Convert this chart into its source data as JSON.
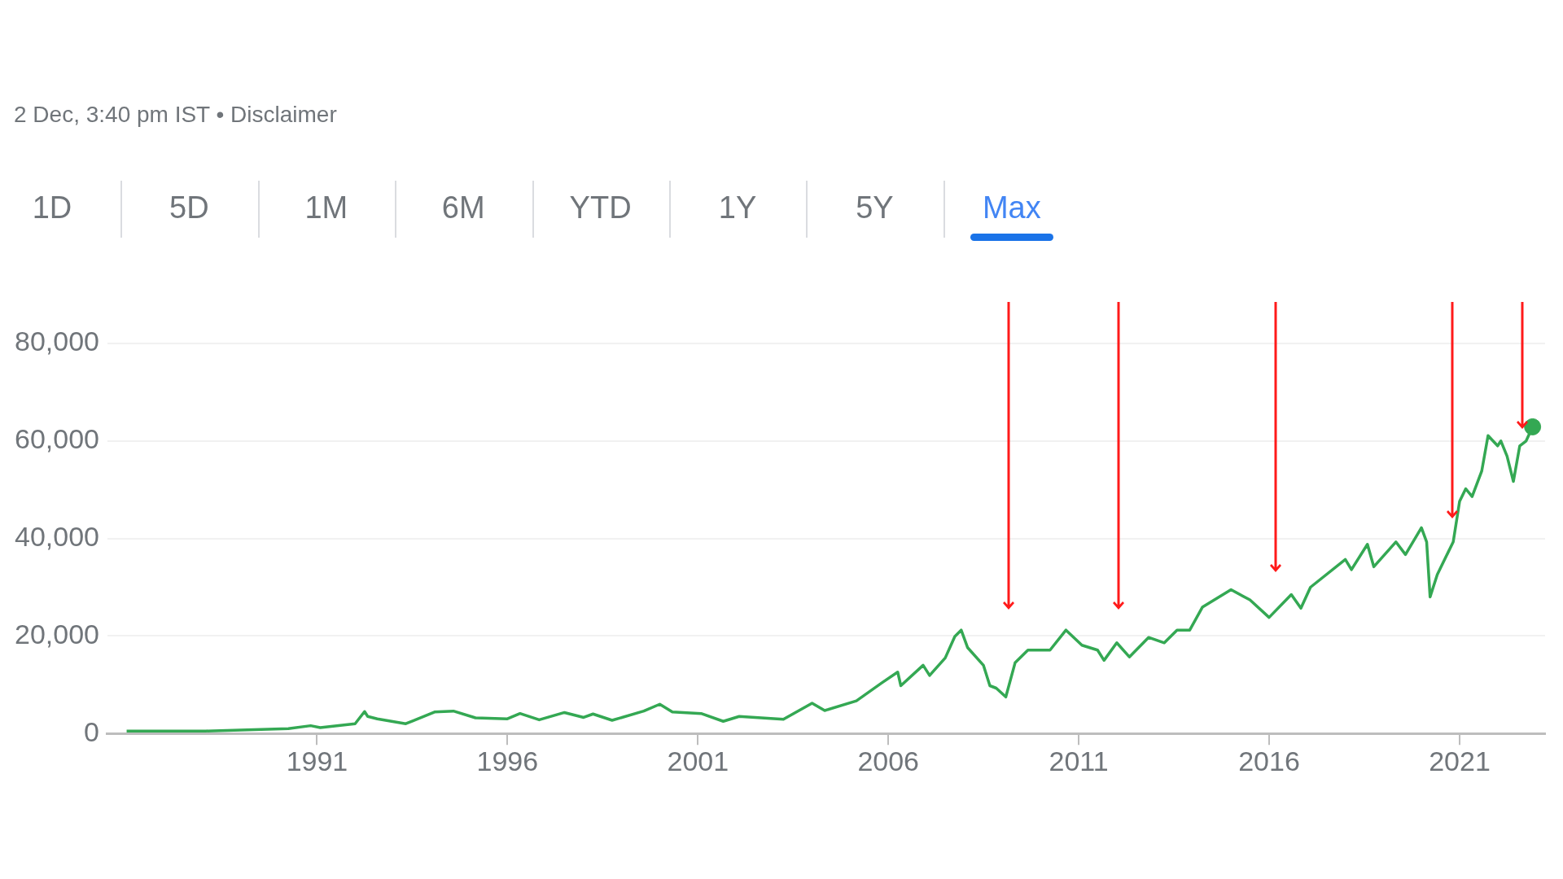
{
  "chart_data": {
    "type": "line",
    "subtitle": "2 Dec, 3:40 pm IST • Disclaimer",
    "annotations": [
      "1D",
      "5D",
      "1M",
      "6M",
      "YTD",
      "1Y",
      "5Y",
      "Max"
    ],
    "x": [
      "1986-01",
      "1988-02",
      "1990-04",
      "1990-11",
      "1991-02",
      "1992-01",
      "1992-04",
      "1992-05",
      "1992-08",
      "1993-05",
      "1994-02",
      "1994-08",
      "1995-03",
      "1996-01",
      "1996-05",
      "1996-11",
      "1997-07",
      "1998-01",
      "1998-04",
      "1998-10",
      "1999-08",
      "2000-01",
      "2000-05",
      "2001-02",
      "2001-09",
      "2002-02",
      "2003-04",
      "2004-01",
      "2004-05",
      "2005-03",
      "2005-11",
      "2006-04",
      "2006-05",
      "2006-12",
      "2007-02",
      "2007-07",
      "2007-10",
      "2007-12",
      "2008-02",
      "2008-07",
      "2008-09",
      "2008-11",
      "2009-02",
      "2009-05",
      "2009-09",
      "2010-04",
      "2010-09",
      "2011-02",
      "2011-07",
      "2011-09",
      "2012-01",
      "2012-05",
      "2012-11",
      "2013-04",
      "2013-08",
      "2013-12",
      "2014-04",
      "2015-01",
      "2015-07",
      "2016-01",
      "2016-08",
      "2016-11",
      "2017-02",
      "2018-01",
      "2018-03",
      "2018-08",
      "2018-10",
      "2019-05",
      "2019-08",
      "2020-01",
      "2020-02-20",
      "2020-03-24",
      "2020-06",
      "2020-11",
      "2021-01",
      "2021-03",
      "2021-05",
      "2021-08",
      "2021-10",
      "2022-01",
      "2022-02",
      "2022-04",
      "2022-06",
      "2022-08",
      "2022-10",
      "2022-12-02"
    ],
    "series": [
      {
        "color": "#34a853",
        "values": [
          500,
          500,
          1000,
          1600,
          1200,
          2000,
          4500,
          3500,
          3000,
          2000,
          4400,
          4600,
          3200,
          3000,
          4100,
          2800,
          4300,
          3300,
          4000,
          2700,
          4600,
          6000,
          4400,
          4100,
          2500,
          3500,
          2900,
          6200,
          4700,
          6700,
          10400,
          12600,
          9800,
          14000,
          11900,
          15500,
          19900,
          21200,
          17600,
          14000,
          9800,
          9300,
          7500,
          14500,
          17100,
          17100,
          21200,
          18100,
          17100,
          15000,
          18600,
          15700,
          19700,
          18600,
          21200,
          21200,
          25900,
          29500,
          27400,
          23800,
          28500,
          25700,
          30000,
          35700,
          33600,
          38800,
          34200,
          39300,
          36700,
          42200,
          39300,
          28000,
          32600,
          39300,
          47600,
          50200,
          48600,
          53800,
          61100,
          59000,
          60000,
          56900,
          51700,
          59000,
          60000,
          62900
        ]
      },
      {
        "type": "scatter",
        "color": "#34a853",
        "marker": "circle",
        "x": [
          "2022-12-02"
        ],
        "values": [
          62900
        ]
      }
    ],
    "xlim": [
      "1985-07",
      "2023-04"
    ],
    "xticks": [
      "1991",
      "1996",
      "2001",
      "2006",
      "2011",
      "2016",
      "2021"
    ],
    "ylim": [
      0,
      80000
    ],
    "yticks": [
      0,
      {
        "value": 20000,
        "label": "20,000"
      },
      {
        "value": 40000,
        "label": "40,000"
      },
      {
        "value": 60000,
        "label": "60,000"
      },
      {
        "value": 80000,
        "label": "80,000"
      }
    ],
    "grid": "y",
    "marker": "none"
  }
}
